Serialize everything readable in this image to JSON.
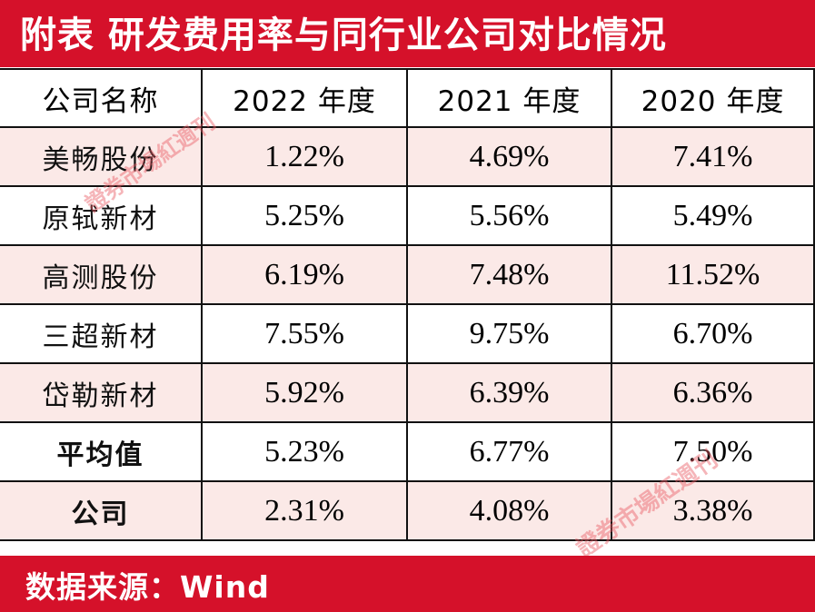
{
  "header": {
    "title": "附表  研发费用率与同行业公司对比情况"
  },
  "table": {
    "columns": [
      "公司名称",
      "2022 年度",
      "2021 年度",
      "2020 年度"
    ],
    "rows": [
      {
        "name": "美畅股份",
        "y2022": "1.22%",
        "y2021": "4.69%",
        "y2020": "7.41%"
      },
      {
        "name": "原轼新材",
        "y2022": "5.25%",
        "y2021": "5.56%",
        "y2020": "5.49%"
      },
      {
        "name": "高测股份",
        "y2022": "6.19%",
        "y2021": "7.48%",
        "y2020": "11.52%"
      },
      {
        "name": "三超新材",
        "y2022": "7.55%",
        "y2021": "9.75%",
        "y2020": "6.70%"
      },
      {
        "name": "岱勒新材",
        "y2022": "5.92%",
        "y2021": "6.39%",
        "y2020": "6.36%"
      },
      {
        "name": "平均值",
        "y2022": "5.23%",
        "y2021": "6.77%",
        "y2020": "7.50%"
      },
      {
        "name": "公司",
        "y2022": "2.31%",
        "y2021": "4.08%",
        "y2020": "3.38%"
      }
    ]
  },
  "footer": {
    "source": "数据来源：Wind"
  },
  "watermark": {
    "text": "證券市場紅週刊"
  },
  "colors": {
    "brand_red": "#d5112a",
    "row_pink": "#fbe9e7",
    "row_white": "#ffffff"
  }
}
